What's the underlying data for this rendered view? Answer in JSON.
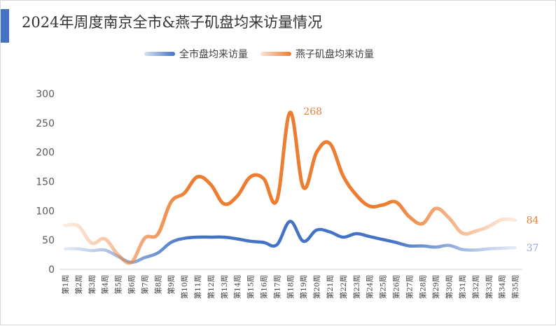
{
  "chart_data": {
    "type": "line",
    "title": "2024年周度南京全市&燕子矶盘均来访量情况",
    "xlabel": "",
    "ylabel": "",
    "ylim": [
      0,
      300
    ],
    "yticks": [
      0,
      50,
      100,
      150,
      200,
      250,
      300
    ],
    "grid": false,
    "legend_position": "top",
    "categories": [
      "第1周",
      "第2周",
      "第3周",
      "第4周",
      "第5周",
      "第6周",
      "第7周",
      "第8周",
      "第9周",
      "第10周",
      "第11周",
      "第12周",
      "第13周",
      "第14周",
      "第15周",
      "第16周",
      "第17周",
      "第18周",
      "第19周",
      "第20周",
      "第21周",
      "第22周",
      "第23周",
      "第24周",
      "第25周",
      "第26周",
      "第27周",
      "第28周",
      "第29周",
      "第30周",
      "第31周",
      "第32周",
      "第33周",
      "第34周",
      "第35周"
    ],
    "series": [
      {
        "name": "全市盘均来访量",
        "color": "#4472c4",
        "values": [
          35,
          35,
          32,
          33,
          22,
          12,
          20,
          28,
          46,
          53,
          55,
          55,
          55,
          52,
          48,
          46,
          42,
          82,
          48,
          67,
          64,
          55,
          61,
          56,
          51,
          46,
          40,
          40,
          38,
          41,
          34,
          33,
          35,
          36,
          37
        ],
        "end_label": "37"
      },
      {
        "name": "燕子矶盘均来访量",
        "color": "#ed7d31",
        "values": [
          75,
          74,
          45,
          52,
          25,
          12,
          53,
          60,
          115,
          130,
          158,
          145,
          112,
          125,
          158,
          155,
          118,
          268,
          140,
          200,
          215,
          160,
          127,
          108,
          110,
          115,
          90,
          78,
          104,
          88,
          62,
          65,
          73,
          85,
          84
        ],
        "peak_label": "268",
        "end_label": "84"
      }
    ]
  }
}
